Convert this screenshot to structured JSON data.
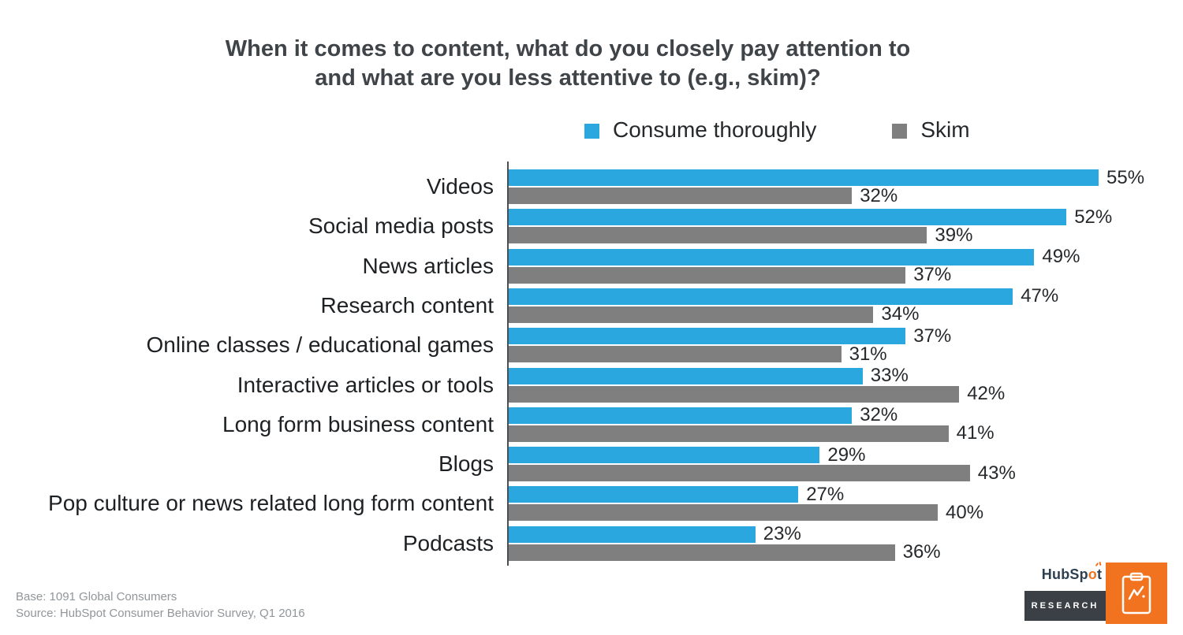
{
  "title": {
    "line1": "When it comes to content, what do you closely pay attention to",
    "line2": "and what are you less attentive to (e.g., skim)?"
  },
  "chart_data": {
    "type": "bar",
    "orientation": "horizontal",
    "title": "When it comes to content, what do you closely pay attention to and what are you less attentive to (e.g., skim)?",
    "categories": [
      "Videos",
      "Social media posts",
      "News articles",
      "Research content",
      "Online classes / educational games",
      "Interactive articles or tools",
      "Long form business content",
      "Blogs",
      "Pop culture or news related long form content",
      "Podcasts"
    ],
    "series": [
      {
        "name": "Consume thoroughly",
        "color": "#2aa7de",
        "values": [
          55,
          52,
          49,
          47,
          37,
          33,
          32,
          29,
          27,
          23
        ]
      },
      {
        "name": "Skim",
        "color": "#7f7f7f",
        "values": [
          32,
          39,
          37,
          34,
          31,
          42,
          41,
          43,
          40,
          36
        ]
      }
    ],
    "value_suffix": "%",
    "xlim": [
      0,
      60
    ],
    "grid": false,
    "legend_position": "top",
    "value_labels": "outside-end"
  },
  "footer": {
    "base": "Base: 1091 Global Consumers",
    "source": "Source: HubSpot Consumer Behavior Survey, Q1 2016"
  },
  "logo": {
    "brand_prefix": "HubSp",
    "brand_o": "o",
    "brand_suffix": "t",
    "research_label": "RESEARCH"
  },
  "colors": {
    "consume_blue": "#2aa7de",
    "skim_gray": "#7f7f7f",
    "title_gray": "#3f4448",
    "axis_gray": "#4a4f54",
    "footnote_gray": "#90969a",
    "hubspot_navy": "#2e3f50",
    "hubspot_orange": "#f2731f",
    "research_box_dark": "#3a4045"
  }
}
